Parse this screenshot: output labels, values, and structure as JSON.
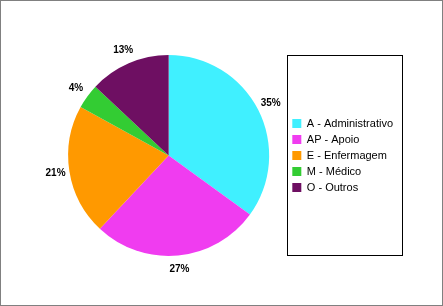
{
  "chart_data": {
    "type": "pie",
    "categories": [
      "A - Administrativo",
      "AP - Apoio",
      "E - Enfermagem",
      "M - Médico",
      "O - Outros"
    ],
    "values": [
      35,
      27,
      21,
      4,
      13
    ],
    "value_labels": [
      "35%",
      "27%",
      "21%",
      "4%",
      "13%"
    ],
    "colors": [
      "#40f0ff",
      "#f03cf0",
      "#ff9900",
      "#33cc33",
      "#6e0f62"
    ],
    "legend": "right",
    "data_labels": true
  }
}
